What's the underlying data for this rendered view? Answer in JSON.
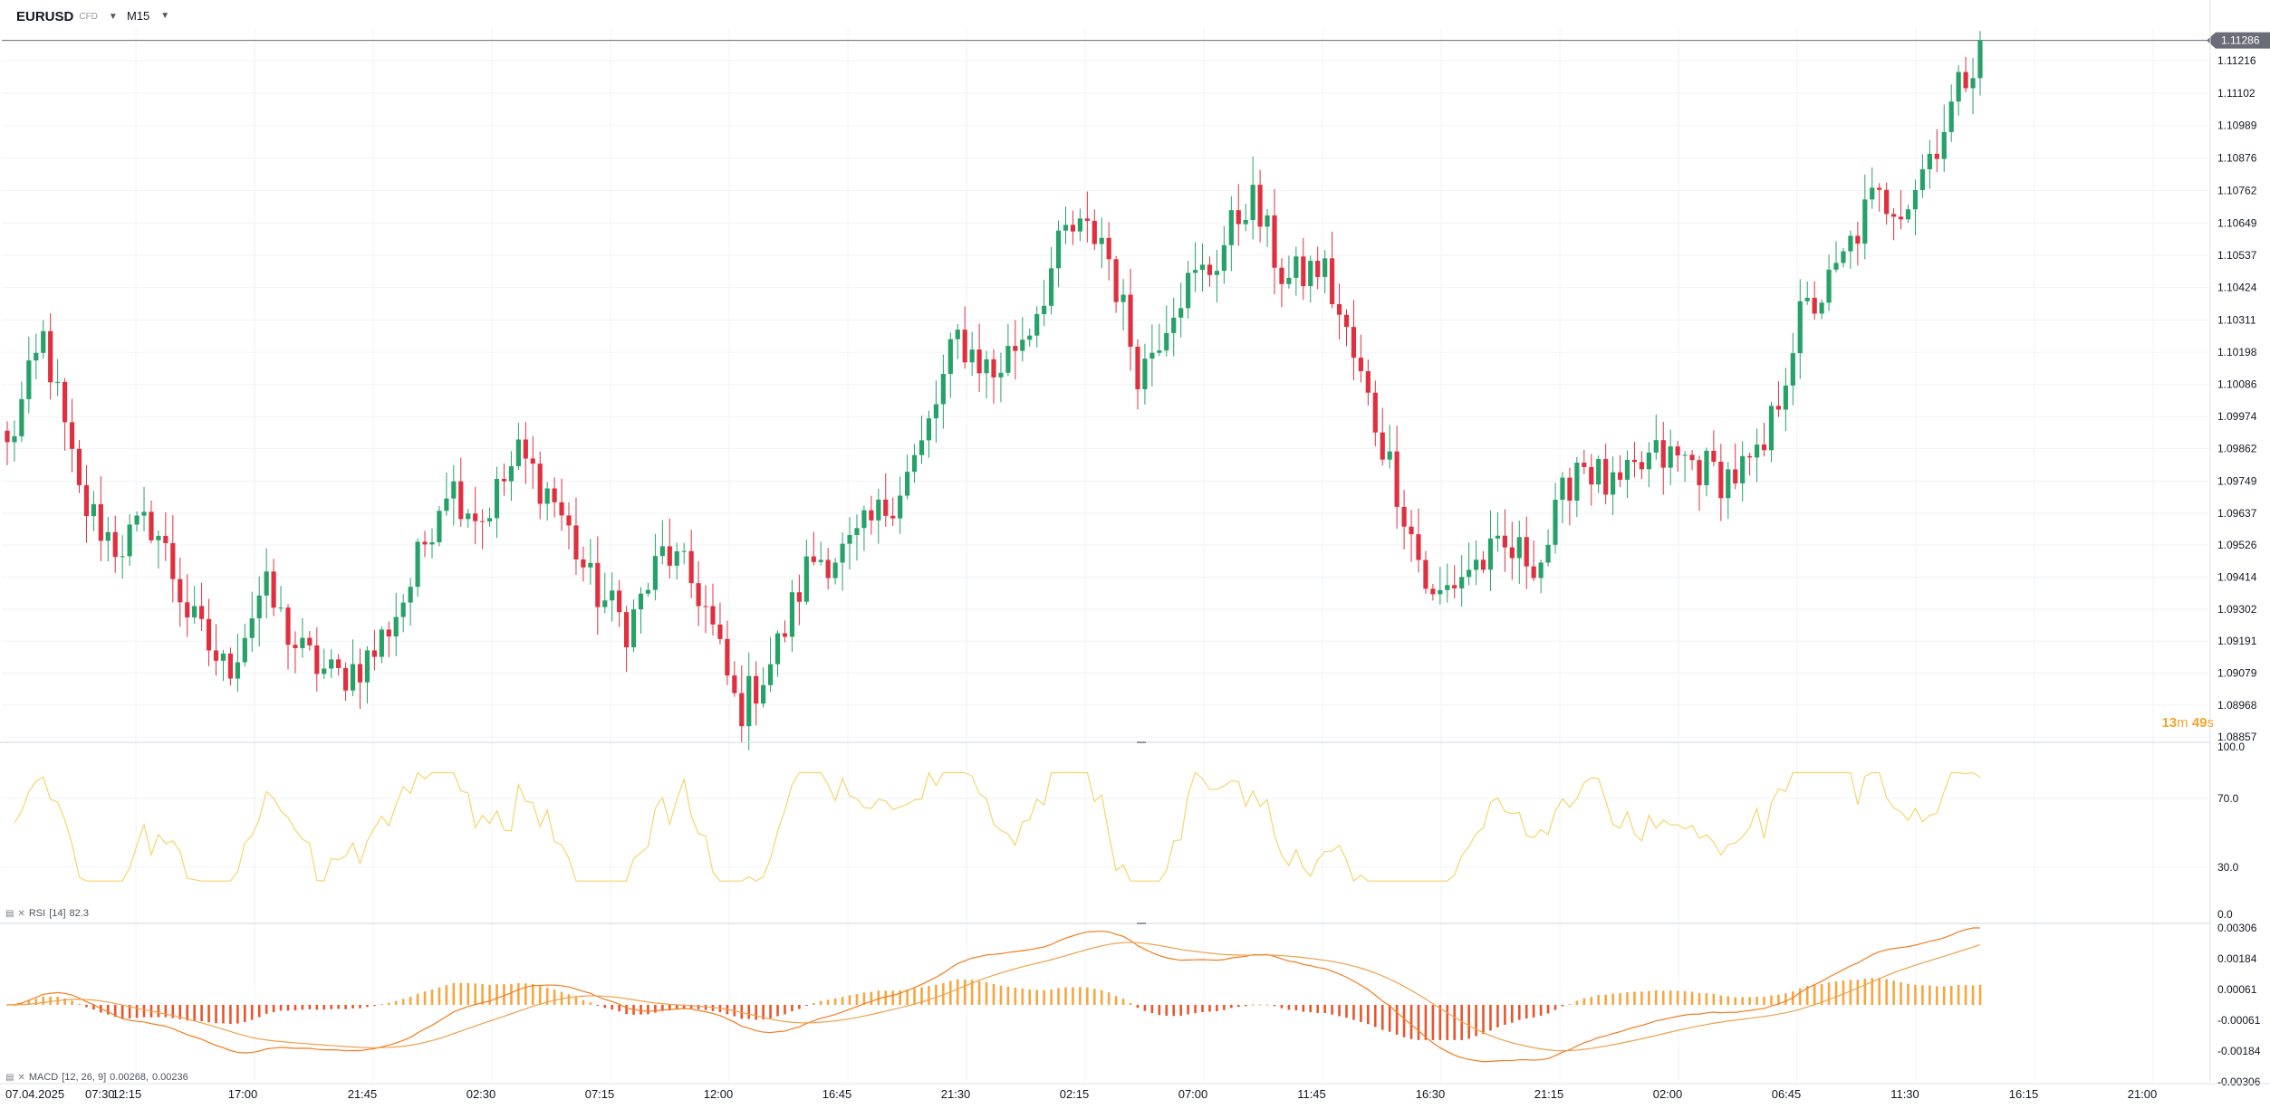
{
  "header": {
    "symbol": "EURUSD",
    "symbol_suffix": "CFD",
    "timeframe": "M15"
  },
  "price_axis": {
    "labels": [
      "1.11216",
      "1.11102",
      "1.10989",
      "1.10876",
      "1.10762",
      "1.10649",
      "1.10537",
      "1.10424",
      "1.10311",
      "1.10198",
      "1.10086",
      "1.09974",
      "1.09862",
      "1.09749",
      "1.09637",
      "1.09526",
      "1.09414",
      "1.09302",
      "1.09191",
      "1.09079",
      "1.08968",
      "1.08857"
    ],
    "current_price": "1.11286"
  },
  "countdown": {
    "minutes": "13",
    "m_unit": "m",
    "seconds": "49",
    "s_unit": "s"
  },
  "rsi": {
    "label": "RSI",
    "params": "[14]",
    "value": "82.3",
    "axis": [
      "100.0",
      "70.0",
      "30.0",
      "0.0"
    ]
  },
  "macd": {
    "label": "MACD",
    "params": "[12, 26, 9]",
    "value1": "0.00268,",
    "value2": "0.00236",
    "axis": [
      "0.00306",
      "0.00184",
      "0.00061",
      "-0.00061",
      "-0.00184",
      "-0.00306"
    ]
  },
  "time_axis": [
    "07.04.2025",
    "07:30",
    "12:15",
    "17:00",
    "21:45",
    "02:30",
    "07:15",
    "12:00",
    "16:45",
    "21:30",
    "02:15",
    "07:00",
    "11:45",
    "16:30",
    "21:15",
    "02:00",
    "06:45",
    "11:30",
    "16:15",
    "21:00"
  ],
  "colors": {
    "up": "#26a269",
    "down": "#e0303f",
    "rsi": "#f5d56e",
    "macd": "#f57c1f",
    "signal": "#f0a04a",
    "hist_pos": "#f7a640",
    "hist_neg": "#e8552c"
  },
  "chart_data": {
    "type": "candlestick",
    "symbol": "EURUSD",
    "interval": "M15",
    "ylim": [
      1.08857,
      1.11329
    ],
    "close_path": [
      {
        "t": "07.04.2025 07:30",
        "c": 1.0986
      },
      {
        "t": "08:45",
        "c": 1.1025
      },
      {
        "t": "10:30",
        "c": 1.0968
      },
      {
        "t": "12:15",
        "c": 1.0952
      },
      {
        "t": "14:30",
        "c": 1.0961
      },
      {
        "t": "16:30",
        "c": 1.0927
      },
      {
        "t": "17:30",
        "c": 1.0908
      },
      {
        "t": "19:00",
        "c": 1.0938
      },
      {
        "t": "21:45",
        "c": 1.0915
      },
      {
        "t": "22:45",
        "c": 1.0906
      },
      {
        "t": "01:30",
        "c": 1.0914
      },
      {
        "t": "02:30",
        "c": 1.0938
      },
      {
        "t": "04:30",
        "c": 1.0975
      },
      {
        "t": "06:00",
        "c": 1.0962
      },
      {
        "t": "07:15",
        "c": 1.0984
      },
      {
        "t": "08:00",
        "c": 1.0968
      },
      {
        "t": "09:15",
        "c": 1.0938
      },
      {
        "t": "11:00",
        "c": 1.0924
      },
      {
        "t": "13:00",
        "c": 1.0951
      },
      {
        "t": "15:30",
        "c": 1.0935
      },
      {
        "t": "16:45",
        "c": 1.0894
      },
      {
        "t": "18:15",
        "c": 1.0914
      },
      {
        "t": "20:00",
        "c": 1.0948
      },
      {
        "t": "21:30",
        "c": 1.095
      },
      {
        "t": "23:00",
        "c": 1.0965
      },
      {
        "t": "01:15",
        "c": 1.0985
      },
      {
        "t": "02:15",
        "c": 1.1025
      },
      {
        "t": "04:00",
        "c": 1.1012
      },
      {
        "t": "05:45",
        "c": 1.103
      },
      {
        "t": "07:00",
        "c": 1.1062
      },
      {
        "t": "09:00",
        "c": 1.106
      },
      {
        "t": "10:00",
        "c": 1.1012
      },
      {
        "t": "11:00",
        "c": 1.104
      },
      {
        "t": "12:30",
        "c": 1.105
      },
      {
        "t": "14:00",
        "c": 1.1075
      },
      {
        "t": "15:30",
        "c": 1.1044
      },
      {
        "t": "17:15",
        "c": 1.105
      },
      {
        "t": "18:30",
        "c": 1.1012
      },
      {
        "t": "19:30",
        "c": 1.0975
      },
      {
        "t": "20:15",
        "c": 1.0932
      },
      {
        "t": "21:15",
        "c": 1.0945
      },
      {
        "t": "23:00",
        "c": 1.095
      },
      {
        "t": "00:45",
        "c": 1.0948
      },
      {
        "t": "02:00",
        "c": 1.0984
      },
      {
        "t": "03:30",
        "c": 1.097
      },
      {
        "t": "05:00",
        "c": 1.0983
      },
      {
        "t": "06:45",
        "c": 1.0982
      },
      {
        "t": "08:15",
        "c": 1.0976
      },
      {
        "t": "09:45",
        "c": 1.0981
      },
      {
        "t": "11:00",
        "c": 1.103
      },
      {
        "t": "12:00",
        "c": 1.1045
      },
      {
        "t": "13:30",
        "c": 1.1072
      },
      {
        "t": "14:15",
        "c": 1.1073
      },
      {
        "t": "15:00",
        "c": 1.1099
      },
      {
        "t": "15:30",
        "c": 1.11286
      }
    ]
  }
}
